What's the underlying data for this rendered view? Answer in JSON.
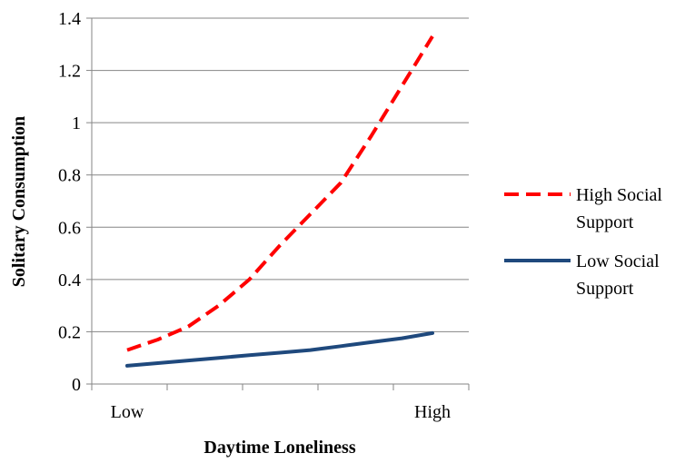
{
  "chart_data": {
    "type": "line",
    "xlabel": "Daytime Loneliness",
    "ylabel": "Solitary Consumption",
    "x": [
      0,
      1,
      2,
      3,
      4,
      5,
      6,
      7,
      8,
      9,
      10
    ],
    "x_tick_labels": [
      {
        "x": 0,
        "label": "Low"
      },
      {
        "x": 10,
        "label": "High"
      }
    ],
    "ylim": [
      0,
      1.4
    ],
    "y_ticks": [
      "0",
      "0.2",
      "0.4",
      "0.6",
      "0.8",
      "1",
      "1.2",
      "1.4"
    ],
    "grid": true,
    "legend_position": "right",
    "series": [
      {
        "name": "High Social Support",
        "color": "#ff0000",
        "style": "dashed",
        "values": [
          0.13,
          0.17,
          0.22,
          0.3,
          0.4,
          0.53,
          0.65,
          0.77,
          0.95,
          1.14,
          1.33
        ]
      },
      {
        "name": "Low Social Support",
        "color": "#1f497d",
        "style": "solid",
        "values": [
          0.07,
          0.08,
          0.09,
          0.1,
          0.11,
          0.12,
          0.13,
          0.145,
          0.16,
          0.175,
          0.195
        ]
      }
    ]
  },
  "legend": {
    "high_line1": "High Social",
    "high_line2": "Support",
    "low_line1": "Low Social",
    "low_line2": "Support"
  }
}
